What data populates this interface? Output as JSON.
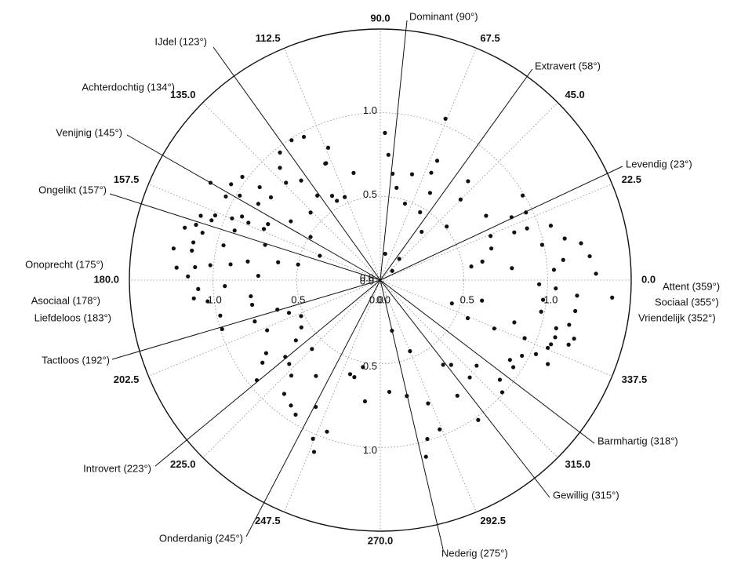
{
  "chart_data": {
    "type": "scatter",
    "projection": "polar",
    "rlim": [
      0,
      1.5
    ],
    "angle_ticks": [
      {
        "deg": 0,
        "label": "0.0"
      },
      {
        "deg": 22.5,
        "label": "22.5"
      },
      {
        "deg": 45,
        "label": "45.0"
      },
      {
        "deg": 67.5,
        "label": "67.5"
      },
      {
        "deg": 90,
        "label": "90.0"
      },
      {
        "deg": 112.5,
        "label": "112.5"
      },
      {
        "deg": 135,
        "label": "135.0"
      },
      {
        "deg": 157.5,
        "label": "157.5"
      },
      {
        "deg": 180,
        "label": "180.0"
      },
      {
        "deg": 202.5,
        "label": "202.5"
      },
      {
        "deg": 225,
        "label": "225.0"
      },
      {
        "deg": 247.5,
        "label": "247.5"
      },
      {
        "deg": 270,
        "label": "270.0"
      },
      {
        "deg": 292.5,
        "label": "292.5"
      },
      {
        "deg": 315,
        "label": "315.0"
      },
      {
        "deg": 337.5,
        "label": "337.5"
      }
    ],
    "radial_ticks": [
      {
        "r": 0.5,
        "label": "0.5"
      },
      {
        "r": 1.0,
        "label": "1.0"
      }
    ],
    "radial_axes": [
      {
        "axis": "up",
        "labels": [
          "0.0",
          "0.5",
          "1.0"
        ]
      },
      {
        "axis": "left",
        "labels": [
          "0.0",
          "0.5",
          "1.0"
        ]
      },
      {
        "axis": "right",
        "labels": [
          "0.0",
          "0.5",
          "1.0"
        ]
      },
      {
        "axis": "down",
        "labels": [
          "0.0",
          "0.5",
          "1.0"
        ]
      }
    ],
    "trait_lines": [
      {
        "label": "Dominant (90°)",
        "deg": 90
      },
      {
        "label": "Extravert (58°)",
        "deg": 58
      },
      {
        "label": "Levendig (23°)",
        "deg": 23
      },
      {
        "label": "Attent (359°)",
        "deg": 359
      },
      {
        "label": "Sociaal (355°)",
        "deg": 355
      },
      {
        "label": "Vriendelijk (352°)",
        "deg": 352
      },
      {
        "label": "Barmhartig (318°)",
        "deg": 318
      },
      {
        "label": "Gewillig (315°)",
        "deg": 315
      },
      {
        "label": "Nederig (275°)",
        "deg": 275
      },
      {
        "label": "Onderdanig (245°)",
        "deg": 245
      },
      {
        "label": "Introvert (223°)",
        "deg": 223
      },
      {
        "label": "Tactloos (192°)",
        "deg": 192
      },
      {
        "label": "Liefdeloos (183°)",
        "deg": 183
      },
      {
        "label": "Asociaal (178°)",
        "deg": 178
      },
      {
        "label": "Onoprecht (175°)",
        "deg": 175
      },
      {
        "label": "Ongelikt (157°)",
        "deg": 157
      },
      {
        "label": "Venijnig (145°)",
        "deg": 145
      },
      {
        "label": "Achterdochtig (134°)",
        "deg": 134
      },
      {
        "label": "IJdel (123°)",
        "deg": 123
      }
    ],
    "points": [
      {
        "deg": 88.2,
        "r": 0.88
      },
      {
        "deg": 86.3,
        "r": 0.75
      },
      {
        "deg": 83.4,
        "r": 0.64
      },
      {
        "deg": 80.0,
        "r": 0.56
      },
      {
        "deg": 72.1,
        "r": 0.48
      },
      {
        "deg": 79.4,
        "r": 0.16
      },
      {
        "deg": 48.2,
        "r": 0.17
      },
      {
        "deg": 37.6,
        "r": 0.09
      },
      {
        "deg": 68.0,
        "r": 1.04
      },
      {
        "deg": 64.5,
        "r": 0.79
      },
      {
        "deg": 73.3,
        "r": 0.66
      },
      {
        "deg": 59.6,
        "r": 0.47
      },
      {
        "deg": 48.4,
        "r": 0.79
      },
      {
        "deg": 38.9,
        "r": 0.51
      },
      {
        "deg": 49.4,
        "r": 0.38
      },
      {
        "deg": 64.6,
        "r": 0.71
      },
      {
        "deg": 113.2,
        "r": 0.54
      },
      {
        "deg": 104.0,
        "r": 0.66
      },
      {
        "deg": 114.9,
        "r": 0.77
      },
      {
        "deg": 111.5,
        "r": 0.85
      },
      {
        "deg": 118.1,
        "r": 0.97
      },
      {
        "deg": 115.3,
        "r": 0.77
      },
      {
        "deg": 122.4,
        "r": 0.99
      },
      {
        "deg": 128.2,
        "r": 0.97
      },
      {
        "deg": 131.8,
        "r": 0.9
      },
      {
        "deg": 128.5,
        "r": 0.76
      },
      {
        "deg": 142.4,
        "r": 0.91
      },
      {
        "deg": 143.2,
        "r": 1.03
      },
      {
        "deg": 147.3,
        "r": 1.06
      },
      {
        "deg": 151.6,
        "r": 1.05
      },
      {
        "deg": 155.3,
        "r": 0.91
      },
      {
        "deg": 158.6,
        "r": 1.06
      },
      {
        "deg": 160.3,
        "r": 1.14
      },
      {
        "deg": 163.3,
        "r": 1.15
      },
      {
        "deg": 165.1,
        "r": 1.1
      },
      {
        "deg": 168.6,
        "r": 1.14
      },
      {
        "deg": 161.2,
        "r": 0.92
      },
      {
        "deg": 156.5,
        "r": 0.86
      },
      {
        "deg": 146.7,
        "r": 0.64
      },
      {
        "deg": 135.9,
        "r": 0.58
      },
      {
        "deg": 134.1,
        "r": 0.81
      },
      {
        "deg": 150.2,
        "r": 1.17
      },
      {
        "deg": 165.0,
        "r": 1.21
      },
      {
        "deg": 171.3,
        "r": 1.25
      },
      {
        "deg": 176.0,
        "r": 1.11
      },
      {
        "deg": 176.5,
        "r": 1.22
      },
      {
        "deg": 175.0,
        "r": 1.02
      },
      {
        "deg": 174.0,
        "r": 0.9
      },
      {
        "deg": 172.0,
        "r": 0.8
      },
      {
        "deg": 178.0,
        "r": 0.73
      },
      {
        "deg": 163.0,
        "r": 0.72
      },
      {
        "deg": 156.3,
        "r": 0.76
      },
      {
        "deg": 169.3,
        "r": 0.5
      },
      {
        "deg": 158.1,
        "r": 0.39
      },
      {
        "deg": 157.4,
        "r": 0.96
      },
      {
        "deg": 148.0,
        "r": 0.86
      },
      {
        "deg": 153.5,
        "r": 0.75
      },
      {
        "deg": 167.5,
        "r": 0.96
      },
      {
        "deg": 171.1,
        "r": 1.14
      },
      {
        "deg": 160.5,
        "r": 1.07
      },
      {
        "deg": 149.0,
        "r": 0.98
      },
      {
        "deg": 142.9,
        "r": 0.82
      },
      {
        "deg": 126.7,
        "r": 0.63
      },
      {
        "deg": 119.8,
        "r": 0.58
      },
      {
        "deg": 19.4,
        "r": 0.93
      },
      {
        "deg": 24.9,
        "r": 0.96
      },
      {
        "deg": 12.3,
        "r": 0.99
      },
      {
        "deg": 10.3,
        "r": 0.62
      },
      {
        "deg": 15.9,
        "r": 0.69
      },
      {
        "deg": 19.6,
        "r": 0.85
      },
      {
        "deg": 25.6,
        "r": 0.87
      },
      {
        "deg": 21.8,
        "r": 0.71
      },
      {
        "deg": 17.7,
        "r": 1.07
      },
      {
        "deg": 12.7,
        "r": 1.13
      },
      {
        "deg": 10.4,
        "r": 1.22
      },
      {
        "deg": 6.5,
        "r": 1.26
      },
      {
        "deg": 6.3,
        "r": 1.1
      },
      {
        "deg": 1.7,
        "r": 1.29
      },
      {
        "deg": 3.4,
        "r": 1.04
      },
      {
        "deg": 5.2,
        "r": 0.79
      },
      {
        "deg": 8.5,
        "r": 0.55
      },
      {
        "deg": 31.3,
        "r": 0.74
      },
      {
        "deg": 357.3,
        "r": 1.05
      },
      {
        "deg": 353.1,
        "r": 0.98
      },
      {
        "deg": 351.0,
        "r": 1.18
      },
      {
        "deg": 346.7,
        "r": 1.16
      },
      {
        "deg": 344.7,
        "r": 1.09
      },
      {
        "deg": 341.9,
        "r": 1.1
      },
      {
        "deg": 338.1,
        "r": 0.93
      },
      {
        "deg": 334.6,
        "r": 1.03
      },
      {
        "deg": 333.4,
        "r": 1.12
      },
      {
        "deg": 331.9,
        "r": 0.96
      },
      {
        "deg": 337.0,
        "r": 0.74
      },
      {
        "deg": 326.8,
        "r": 0.95
      },
      {
        "deg": 328.4,
        "r": 0.91
      },
      {
        "deg": 358.5,
        "r": 0.95
      },
      {
        "deg": 355.5,
        "r": 1.18
      },
      {
        "deg": 348.9,
        "r": 0.98
      },
      {
        "deg": 343.2,
        "r": 1.21
      },
      {
        "deg": 338.0,
        "r": 1.08
      },
      {
        "deg": 342.5,
        "r": 0.84
      },
      {
        "deg": 348.6,
        "r": 0.62
      },
      {
        "deg": 342.0,
        "r": 0.45
      },
      {
        "deg": 336.5,
        "r": 0.57
      },
      {
        "deg": 318.4,
        "r": 0.77
      },
      {
        "deg": 320.2,
        "r": 0.93
      },
      {
        "deg": 317.4,
        "r": 0.99
      },
      {
        "deg": 305.0,
        "r": 1.02
      },
      {
        "deg": 312.6,
        "r": 0.79
      },
      {
        "deg": 303.7,
        "r": 0.83
      },
      {
        "deg": 291.7,
        "r": 0.96
      },
      {
        "deg": 286.5,
        "r": 0.99
      },
      {
        "deg": 292.7,
        "r": 0.46
      },
      {
        "deg": 306.6,
        "r": 0.63
      },
      {
        "deg": 309.9,
        "r": 0.66
      },
      {
        "deg": 282.9,
        "r": 0.71
      },
      {
        "deg": 274.6,
        "r": 0.67
      },
      {
        "deg": 284.5,
        "r": 1.09
      },
      {
        "deg": 283.0,
        "r": 0.31
      },
      {
        "deg": 291.2,
        "r": 0.79
      },
      {
        "deg": 252.2,
        "r": 0.59
      },
      {
        "deg": 250.6,
        "r": 0.96
      },
      {
        "deg": 247.0,
        "r": 1.03
      },
      {
        "deg": 248.9,
        "r": 1.1
      },
      {
        "deg": 236.1,
        "r": 0.69
      },
      {
        "deg": 234.5,
        "r": 0.92
      },
      {
        "deg": 237.8,
        "r": 0.95
      },
      {
        "deg": 229.8,
        "r": 0.89
      },
      {
        "deg": 227.0,
        "r": 0.78
      },
      {
        "deg": 222.6,
        "r": 0.74
      },
      {
        "deg": 218.9,
        "r": 0.73
      },
      {
        "deg": 215.5,
        "r": 0.62
      },
      {
        "deg": 210.9,
        "r": 0.55
      },
      {
        "deg": 204.4,
        "r": 0.52
      },
      {
        "deg": 199.7,
        "r": 0.58
      },
      {
        "deg": 196.0,
        "r": 0.64
      },
      {
        "deg": 190.9,
        "r": 0.78
      },
      {
        "deg": 187.1,
        "r": 0.78
      },
      {
        "deg": 197.2,
        "r": 0.99
      },
      {
        "deg": 192.5,
        "r": 0.98
      },
      {
        "deg": 198.2,
        "r": 0.79
      },
      {
        "deg": 203.9,
        "r": 0.74
      },
      {
        "deg": 212.6,
        "r": 0.81
      },
      {
        "deg": 219.0,
        "r": 0.95
      },
      {
        "deg": 215.0,
        "r": 0.86
      },
      {
        "deg": 225.2,
        "r": 0.58
      },
      {
        "deg": 258.7,
        "r": 0.53
      },
      {
        "deg": 262.8,
        "r": 0.73
      },
      {
        "deg": 255.0,
        "r": 0.6
      },
      {
        "deg": 243.0,
        "r": 0.85
      },
      {
        "deg": 185.6,
        "r": 1.12
      },
      {
        "deg": 182.8,
        "r": 1.09
      },
      {
        "deg": 187.0,
        "r": 1.04
      },
      {
        "deg": 170.1,
        "r": 0.62
      },
      {
        "deg": 148.3,
        "r": 0.49
      },
      {
        "deg": 178.9,
        "r": 1.15
      },
      {
        "deg": 182.2,
        "r": 0.93
      },
      {
        "deg": 118.7,
        "r": 0.54
      },
      {
        "deg": 60.3,
        "r": 0.6
      },
      {
        "deg": 45.1,
        "r": 0.68
      },
      {
        "deg": 30.7,
        "r": 0.99
      },
      {
        "deg": 355.7,
        "r": 1.39
      },
      {
        "deg": 339.4,
        "r": 1.09
      },
      {
        "deg": 341.1,
        "r": 1.19
      }
    ]
  }
}
